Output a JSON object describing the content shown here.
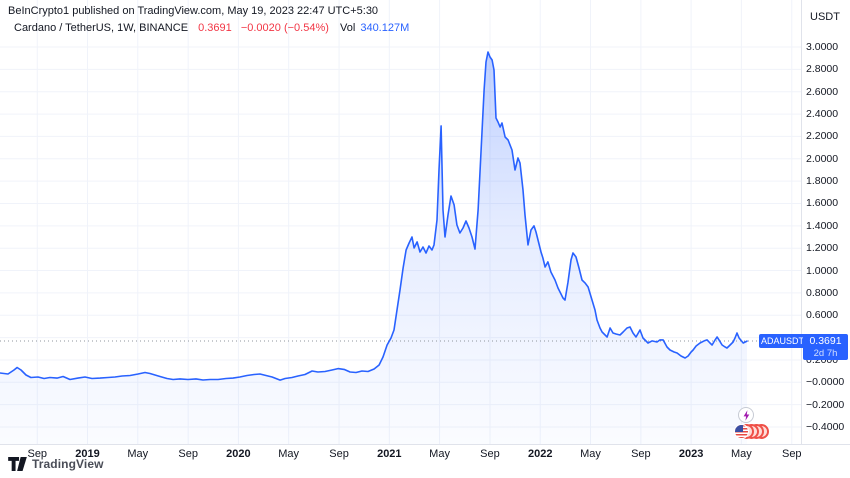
{
  "header": {
    "attribution": "BeInCrypto1 published on TradingView.com, May 19, 2023 22:47 UTC+5:30",
    "symbol": {
      "name": "Cardano / TetherUS, 1W, BINANCE",
      "price": "0.3691",
      "change": "−0.0020 (−0.54%)",
      "vol_label": "Vol",
      "vol_value": "340.127M"
    }
  },
  "axes": {
    "currency_label": "USDT",
    "price_ticks": [
      {
        "label": "3.0000",
        "value": 3.0
      },
      {
        "label": "2.8000",
        "value": 2.8
      },
      {
        "label": "2.6000",
        "value": 2.6
      },
      {
        "label": "2.4000",
        "value": 2.4
      },
      {
        "label": "2.2000",
        "value": 2.2
      },
      {
        "label": "2.0000",
        "value": 2.0
      },
      {
        "label": "1.8000",
        "value": 1.8
      },
      {
        "label": "1.6000",
        "value": 1.6
      },
      {
        "label": "1.4000",
        "value": 1.4
      },
      {
        "label": "1.2000",
        "value": 1.2
      },
      {
        "label": "1.0000",
        "value": 1.0
      },
      {
        "label": "0.8000",
        "value": 0.8
      },
      {
        "label": "0.6000",
        "value": 0.6
      },
      {
        "label": "0.4000",
        "value": 0.4
      },
      {
        "label": "0.2000",
        "value": 0.2
      },
      {
        "label": "−0.0000",
        "value": 0.0
      },
      {
        "label": "−0.2000",
        "value": -0.2
      },
      {
        "label": "−0.4000",
        "value": -0.4
      }
    ],
    "time_ticks": [
      {
        "label": "Sep",
        "t": 2018.667,
        "bold": false
      },
      {
        "label": "2019",
        "t": 2019.0,
        "bold": true
      },
      {
        "label": "May",
        "t": 2019.333,
        "bold": false
      },
      {
        "label": "Sep",
        "t": 2019.667,
        "bold": false
      },
      {
        "label": "2020",
        "t": 2020.0,
        "bold": true
      },
      {
        "label": "May",
        "t": 2020.333,
        "bold": false
      },
      {
        "label": "Sep",
        "t": 2020.667,
        "bold": false
      },
      {
        "label": "2021",
        "t": 2021.0,
        "bold": true
      },
      {
        "label": "May",
        "t": 2021.333,
        "bold": false
      },
      {
        "label": "Sep",
        "t": 2021.667,
        "bold": false
      },
      {
        "label": "2022",
        "t": 2022.0,
        "bold": true
      },
      {
        "label": "May",
        "t": 2022.333,
        "bold": false
      },
      {
        "label": "Sep",
        "t": 2022.667,
        "bold": false
      },
      {
        "label": "2023",
        "t": 2023.0,
        "bold": true
      },
      {
        "label": "May",
        "t": 2023.333,
        "bold": false
      },
      {
        "label": "Sep",
        "t": 2023.667,
        "bold": false
      }
    ]
  },
  "price_tag": {
    "symbol": "ADAUSDT",
    "price": "0.3691",
    "countdown": "2d 7h"
  },
  "footer": {
    "brand": "TradingView"
  },
  "widgets": {
    "lightning_icon_color": "#a21caf",
    "reaction_icons": [
      "us-flag",
      "red-face",
      "red-face",
      "red-face",
      "red-face"
    ]
  },
  "colors": {
    "line": "#2962ff",
    "accent_blue": "#2962ff",
    "down_red": "#f23645",
    "grid": "#f0f3fa",
    "axis_border": "#e0e3eb",
    "last_price_dots": "#8f959e"
  },
  "chart_data": {
    "type": "area",
    "title": "Cardano / TetherUS, 1W, BINANCE",
    "symbol": "ADAUSDT",
    "ylabel": "USDT",
    "x_unit": "decimal_year",
    "x_range": [
      2018.42,
      2023.72
    ],
    "ylim": [
      -0.45,
      3.05
    ],
    "grid": true,
    "legend_position": "none",
    "last_price": 0.3691,
    "countdown": "2d 7h",
    "points": [
      [
        2018.42,
        0.083
      ],
      [
        2018.473,
        0.074
      ],
      [
        2018.513,
        0.11
      ],
      [
        2018.533,
        0.132
      ],
      [
        2018.559,
        0.11
      ],
      [
        2018.592,
        0.065
      ],
      [
        2018.625,
        0.043
      ],
      [
        2018.672,
        0.047
      ],
      [
        2018.712,
        0.034
      ],
      [
        2018.751,
        0.043
      ],
      [
        2018.798,
        0.038
      ],
      [
        2018.838,
        0.052
      ],
      [
        2018.884,
        0.025
      ],
      [
        2018.937,
        0.038
      ],
      [
        2018.983,
        0.047
      ],
      [
        2019.03,
        0.034
      ],
      [
        2019.083,
        0.038
      ],
      [
        2019.136,
        0.043
      ],
      [
        2019.182,
        0.047
      ],
      [
        2019.229,
        0.056
      ],
      [
        2019.282,
        0.061
      ],
      [
        2019.335,
        0.074
      ],
      [
        2019.381,
        0.088
      ],
      [
        2019.414,
        0.079
      ],
      [
        2019.447,
        0.065
      ],
      [
        2019.48,
        0.052
      ],
      [
        2019.527,
        0.034
      ],
      [
        2019.567,
        0.025
      ],
      [
        2019.613,
        0.03
      ],
      [
        2019.666,
        0.025
      ],
      [
        2019.719,
        0.03
      ],
      [
        2019.765,
        0.021
      ],
      [
        2019.812,
        0.025
      ],
      [
        2019.865,
        0.025
      ],
      [
        2019.918,
        0.034
      ],
      [
        2019.964,
        0.038
      ],
      [
        2020.01,
        0.047
      ],
      [
        2020.057,
        0.061
      ],
      [
        2020.103,
        0.07
      ],
      [
        2020.143,
        0.074
      ],
      [
        2020.183,
        0.061
      ],
      [
        2020.223,
        0.047
      ],
      [
        2020.276,
        0.02
      ],
      [
        2020.309,
        0.034
      ],
      [
        2020.355,
        0.043
      ],
      [
        2020.395,
        0.056
      ],
      [
        2020.441,
        0.07
      ],
      [
        2020.488,
        0.101
      ],
      [
        2020.527,
        0.092
      ],
      [
        2020.574,
        0.097
      ],
      [
        2020.62,
        0.11
      ],
      [
        2020.66,
        0.123
      ],
      [
        2020.7,
        0.115
      ],
      [
        2020.74,
        0.092
      ],
      [
        2020.779,
        0.088
      ],
      [
        2020.819,
        0.101
      ],
      [
        2020.859,
        0.097
      ],
      [
        2020.899,
        0.119
      ],
      [
        2020.932,
        0.155
      ],
      [
        2020.958,
        0.226
      ],
      [
        2020.985,
        0.334
      ],
      [
        2021.011,
        0.396
      ],
      [
        2021.031,
        0.468
      ],
      [
        2021.051,
        0.647
      ],
      [
        2021.071,
        0.826
      ],
      [
        2021.091,
        1.023
      ],
      [
        2021.111,
        1.184
      ],
      [
        2021.131,
        1.246
      ],
      [
        2021.15,
        1.3
      ],
      [
        2021.164,
        1.202
      ],
      [
        2021.184,
        1.256
      ],
      [
        2021.203,
        1.166
      ],
      [
        2021.223,
        1.211
      ],
      [
        2021.243,
        1.157
      ],
      [
        2021.263,
        1.22
      ],
      [
        2021.283,
        1.184
      ],
      [
        2021.296,
        1.229
      ],
      [
        2021.316,
        1.452
      ],
      [
        2021.329,
        1.9
      ],
      [
        2021.343,
        2.294
      ],
      [
        2021.356,
        1.542
      ],
      [
        2021.369,
        1.3
      ],
      [
        2021.389,
        1.497
      ],
      [
        2021.409,
        1.667
      ],
      [
        2021.429,
        1.587
      ],
      [
        2021.448,
        1.408
      ],
      [
        2021.468,
        1.336
      ],
      [
        2021.488,
        1.381
      ],
      [
        2021.508,
        1.443
      ],
      [
        2021.528,
        1.381
      ],
      [
        2021.548,
        1.3
      ],
      [
        2021.568,
        1.193
      ],
      [
        2021.588,
        1.542
      ],
      [
        2021.608,
        2.079
      ],
      [
        2021.628,
        2.615
      ],
      [
        2021.641,
        2.866
      ],
      [
        2021.654,
        2.955
      ],
      [
        2021.667,
        2.911
      ],
      [
        2021.681,
        2.884
      ],
      [
        2021.694,
        2.794
      ],
      [
        2021.707,
        2.365
      ],
      [
        2021.72,
        2.329
      ],
      [
        2021.734,
        2.284
      ],
      [
        2021.747,
        2.32
      ],
      [
        2021.767,
        2.195
      ],
      [
        2021.787,
        2.168
      ],
      [
        2021.813,
        2.079
      ],
      [
        2021.833,
        1.9
      ],
      [
        2021.853,
        2.007
      ],
      [
        2021.866,
        1.962
      ],
      [
        2021.886,
        1.721
      ],
      [
        2021.899,
        1.497
      ],
      [
        2021.919,
        1.229
      ],
      [
        2021.939,
        1.363
      ],
      [
        2021.959,
        1.399
      ],
      [
        2021.972,
        1.345
      ],
      [
        2021.985,
        1.273
      ],
      [
        2022.005,
        1.166
      ],
      [
        2022.018,
        1.112
      ],
      [
        2022.032,
        1.032
      ],
      [
        2022.051,
        1.077
      ],
      [
        2022.071,
        0.987
      ],
      [
        2022.098,
        0.915
      ],
      [
        2022.118,
        0.844
      ],
      [
        2022.131,
        0.808
      ],
      [
        2022.151,
        0.754
      ],
      [
        2022.164,
        0.736
      ],
      [
        2022.184,
        0.897
      ],
      [
        2022.204,
        1.094
      ],
      [
        2022.217,
        1.157
      ],
      [
        2022.237,
        1.121
      ],
      [
        2022.257,
        1.023
      ],
      [
        2022.277,
        0.915
      ],
      [
        2022.297,
        0.889
      ],
      [
        2022.317,
        0.853
      ],
      [
        2022.343,
        0.736
      ],
      [
        2022.363,
        0.647
      ],
      [
        2022.376,
        0.557
      ],
      [
        2022.396,
        0.486
      ],
      [
        2022.41,
        0.45
      ],
      [
        2022.43,
        0.423
      ],
      [
        2022.443,
        0.405
      ],
      [
        2022.463,
        0.486
      ],
      [
        2022.482,
        0.441
      ],
      [
        2022.502,
        0.432
      ],
      [
        2022.529,
        0.423
      ],
      [
        2022.549,
        0.45
      ],
      [
        2022.575,
        0.486
      ],
      [
        2022.595,
        0.495
      ],
      [
        2022.615,
        0.441
      ],
      [
        2022.635,
        0.405
      ],
      [
        2022.661,
        0.468
      ],
      [
        2022.681,
        0.396
      ],
      [
        2022.714,
        0.352
      ],
      [
        2022.741,
        0.37
      ],
      [
        2022.774,
        0.361
      ],
      [
        2022.794,
        0.379
      ],
      [
        2022.814,
        0.379
      ],
      [
        2022.84,
        0.316
      ],
      [
        2022.86,
        0.289
      ],
      [
        2022.887,
        0.271
      ],
      [
        2022.907,
        0.262
      ],
      [
        2022.933,
        0.235
      ],
      [
        2022.96,
        0.217
      ],
      [
        2022.98,
        0.235
      ],
      [
        2023.0,
        0.271
      ],
      [
        2023.013,
        0.289
      ],
      [
        2023.033,
        0.325
      ],
      [
        2023.059,
        0.352
      ],
      [
        2023.086,
        0.37
      ],
      [
        2023.106,
        0.379
      ],
      [
        2023.125,
        0.352
      ],
      [
        2023.139,
        0.334
      ],
      [
        2023.159,
        0.379
      ],
      [
        2023.172,
        0.405
      ],
      [
        2023.185,
        0.379
      ],
      [
        2023.205,
        0.334
      ],
      [
        2023.225,
        0.316
      ],
      [
        2023.238,
        0.307
      ],
      [
        2023.258,
        0.334
      ],
      [
        2023.278,
        0.361
      ],
      [
        2023.291,
        0.396
      ],
      [
        2023.304,
        0.441
      ],
      [
        2023.318,
        0.396
      ],
      [
        2023.345,
        0.352
      ],
      [
        2023.37,
        0.369
      ]
    ]
  }
}
